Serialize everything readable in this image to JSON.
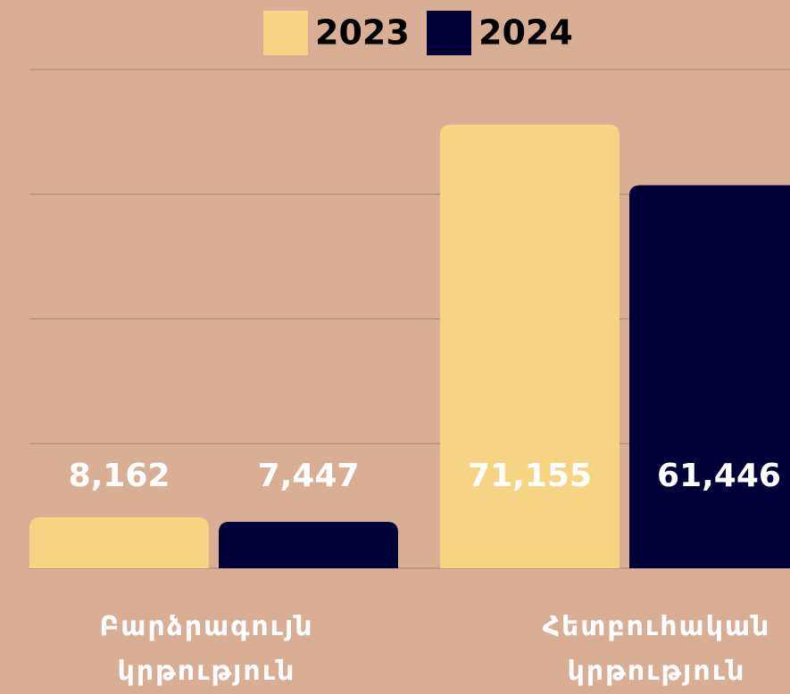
{
  "chart_data": {
    "type": "bar",
    "categories": [
      "Բարձրագույն կրթություն",
      "Հետբուհական կրթություն"
    ],
    "series": [
      {
        "name": "2023",
        "color": "#f5d583",
        "values": [
          8162,
          71155
        ],
        "value_labels": [
          "8,162",
          "71,155"
        ]
      },
      {
        "name": "2024",
        "color": "#000038",
        "values": [
          7447,
          61446
        ],
        "value_labels": [
          "7,447",
          "61,446"
        ]
      }
    ],
    "ylim": [
      0,
      80000
    ],
    "yticks": [
      0,
      20000,
      40000,
      60000,
      80000
    ],
    "grid": true,
    "grid_color": "#a88670",
    "legend": "top"
  }
}
